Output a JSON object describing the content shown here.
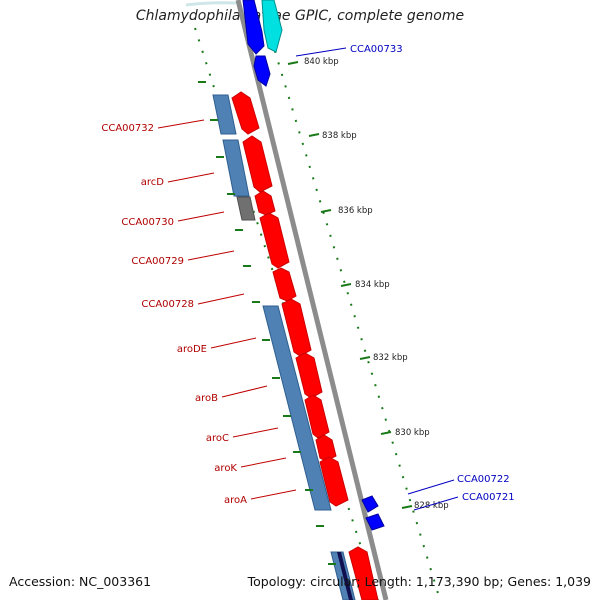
{
  "title": "Chlamydophila caviae GPIC, complete genome",
  "footer": {
    "accession": "Accession: NC_003361",
    "topology": "Topology: circular; Length: 1,173,390 bp; Genes: 1,039"
  },
  "colors": {
    "forward_cds": "#ff0000",
    "reverse_cds": "#0000ff",
    "forward_label": "#b00000",
    "reverse_label": "#0000c0",
    "steelblue": "#4f81b4",
    "cyan": "#00e0e0",
    "gray": "#707070",
    "tick": "#1a7a1a",
    "backbone": "#888888"
  },
  "scale_ticks": [
    {
      "label": "840 kbp",
      "kbp": 840
    },
    {
      "label": "838 kbp",
      "kbp": 838
    },
    {
      "label": "836 kbp",
      "kbp": 836
    },
    {
      "label": "834 kbp",
      "kbp": 834
    },
    {
      "label": "832 kbp",
      "kbp": 832
    },
    {
      "label": "830 kbp",
      "kbp": 830
    },
    {
      "label": "828 kbp",
      "kbp": 828
    }
  ],
  "labels_left": [
    {
      "text": "CCA00732"
    },
    {
      "text": "arcD"
    },
    {
      "text": "CCA00730"
    },
    {
      "text": "CCA00729"
    },
    {
      "text": "CCA00728"
    },
    {
      "text": "aroDE"
    },
    {
      "text": "aroB"
    },
    {
      "text": "aroC"
    },
    {
      "text": "aroK"
    },
    {
      "text": "aroA"
    }
  ],
  "labels_right": [
    {
      "text": "CCA00733"
    },
    {
      "text": "CCA00722"
    },
    {
      "text": "CCA00721"
    }
  ]
}
